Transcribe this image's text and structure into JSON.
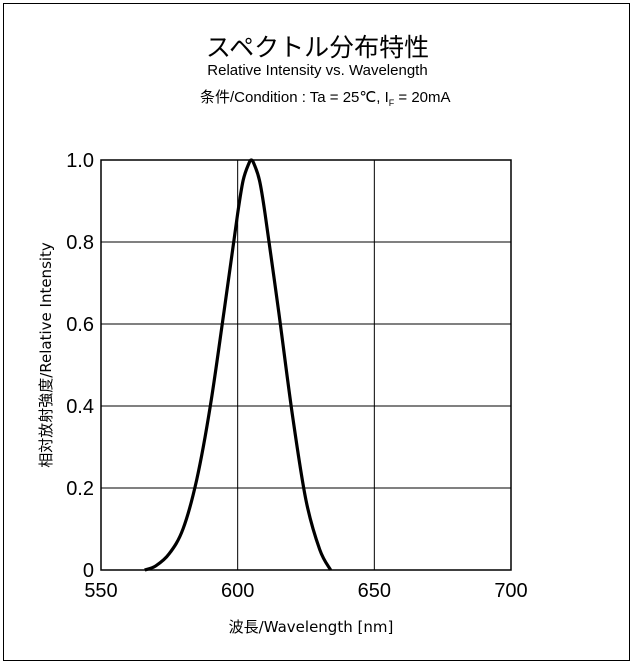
{
  "header": {
    "title": "スペクトル分布特性",
    "subtitle": "Relative Intensity vs. Wavelength",
    "condition_prefix": "条件/Condition : Ta = 25℃, I",
    "condition_sub": "F",
    "condition_suffix": " = 20mA"
  },
  "chart_data": {
    "type": "line",
    "xlabel": "波長/Wavelength [nm]",
    "ylabel": "相対放射強度/Relative Intensity",
    "xlim": [
      550,
      700
    ],
    "ylim": [
      0,
      1.0
    ],
    "x_ticks": [
      "550",
      "600",
      "650",
      "700"
    ],
    "y_ticks": [
      "0",
      "0.2",
      "0.4",
      "0.6",
      "0.8",
      "1.0"
    ],
    "grid": true,
    "series": [
      {
        "x": [
          566,
          570,
          575,
          580,
          585,
          590,
          595,
          600,
          602,
          604,
          605,
          606,
          608,
          610,
          615,
          620,
          625,
          630,
          634
        ],
        "y": [
          0.0,
          0.01,
          0.04,
          0.1,
          0.22,
          0.4,
          0.63,
          0.87,
          0.95,
          0.99,
          1.0,
          0.99,
          0.95,
          0.87,
          0.63,
          0.38,
          0.17,
          0.05,
          0.0
        ]
      }
    ],
    "line_color": "#000000"
  }
}
